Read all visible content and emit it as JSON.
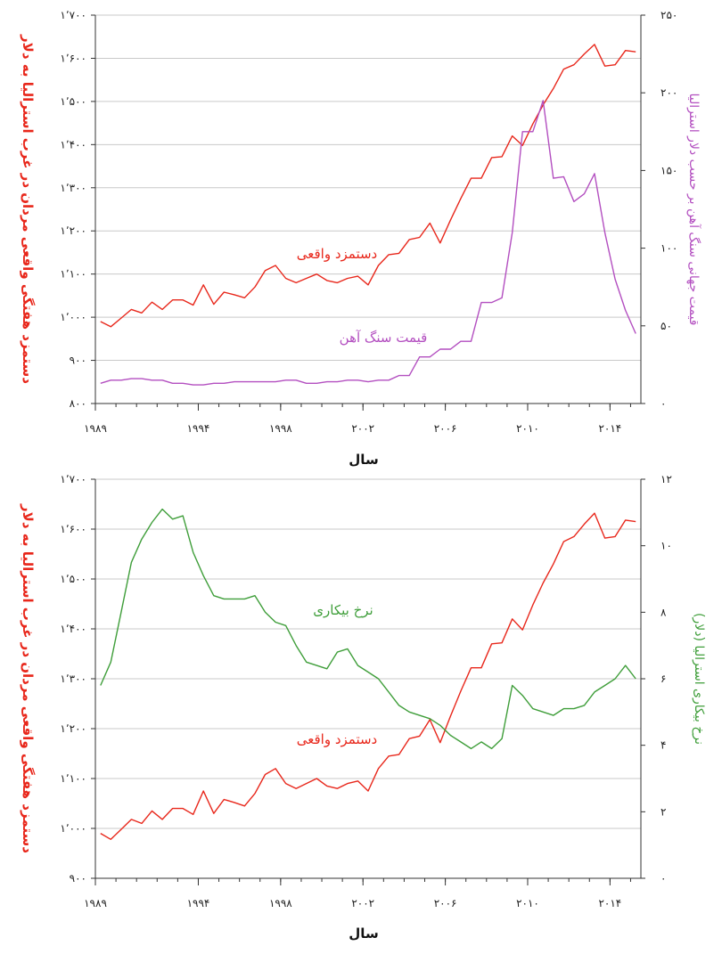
{
  "colors": {
    "wage": "#e8271b",
    "iron": "#b34fc0",
    "unemployment": "#3f9e3a",
    "grid": "#c9c9c9",
    "axis": "#333333"
  },
  "chart_data": [
    {
      "type": "line",
      "xlabel": "سال",
      "ylabel_left": "دستمزد هفتگی واقعی مردان در غرب استرالیا به دلار",
      "ylabel_right": "قیمت جهانی سنگ آهن بر حسب دلار استرالیا",
      "xlim": [
        1989,
        2015.5
      ],
      "ylim_left": [
        800,
        1700
      ],
      "ylim_right": [
        0,
        250
      ],
      "x_ticks": [
        1989,
        1994,
        1998,
        2002,
        2006,
        2010,
        2014
      ],
      "x_tick_labels": [
        "۱۹۸۹",
        "۱۹۹۴",
        "۱۹۹۸",
        "۲۰۰۲",
        "۲۰۰۶",
        "۲۰۱۰",
        "۲۰۱۴"
      ],
      "y_left_ticks": [
        800,
        900,
        1000,
        1100,
        1200,
        1300,
        1400,
        1500,
        1600,
        1700
      ],
      "y_left_tick_labels": [
        "۸۰۰",
        "۹۰۰",
        "۱٬۰۰۰",
        "۱٬۱۰۰",
        "۱٬۲۰۰",
        "۱٬۳۰۰",
        "۱٬۴۰۰",
        "۱٬۵۰۰",
        "۱٬۶۰۰",
        "۱٬۷۰۰"
      ],
      "y_right_ticks": [
        0,
        50,
        100,
        150,
        200,
        250
      ],
      "y_right_tick_labels": [
        "۰",
        "۵۰",
        "۱۰۰",
        "۱۵۰",
        "۲۰۰",
        "۲۵۰"
      ],
      "grid": "horizontal",
      "series": [
        {
          "name": "دستمزد واقعی",
          "axis": "left",
          "color": "#e8271b",
          "x": [
            1989.25,
            1989.75,
            1990.25,
            1990.75,
            1991.25,
            1991.75,
            1992.25,
            1992.75,
            1993.25,
            1993.75,
            1994.25,
            1994.75,
            1995.25,
            1995.75,
            1996.25,
            1996.75,
            1997.25,
            1997.75,
            1998.25,
            1998.75,
            1999.25,
            1999.75,
            2000.25,
            2000.75,
            2001.25,
            2001.75,
            2002.25,
            2002.75,
            2003.25,
            2003.75,
            2004.25,
            2004.75,
            2005.25,
            2005.75,
            2006.25,
            2006.75,
            2007.25,
            2007.75,
            2008.25,
            2008.75,
            2009.25,
            2009.75,
            2010.25,
            2010.75,
            2011.25,
            2011.75,
            2012.25,
            2012.75,
            2013.25,
            2013.75,
            2014.25,
            2014.75,
            2015.25
          ],
          "values": [
            990,
            978,
            998,
            1018,
            1010,
            1035,
            1018,
            1040,
            1040,
            1028,
            1075,
            1030,
            1058,
            1052,
            1045,
            1070,
            1108,
            1120,
            1090,
            1080,
            1090,
            1100,
            1085,
            1080,
            1090,
            1095,
            1075,
            1120,
            1145,
            1148,
            1180,
            1185,
            1218,
            1172,
            1225,
            1275,
            1322,
            1322,
            1370,
            1372,
            1420,
            1398,
            1448,
            1492,
            1530,
            1575,
            1585,
            1610,
            1632,
            1582,
            1585,
            1618,
            1615
          ]
        },
        {
          "name": "قیمت سنگ آهن",
          "axis": "right",
          "color": "#b34fc0",
          "x": [
            1989.25,
            1989.75,
            1990.25,
            1990.75,
            1991.25,
            1991.75,
            1992.25,
            1992.75,
            1993.25,
            1993.75,
            1994.25,
            1994.75,
            1995.25,
            1995.75,
            1996.25,
            1996.75,
            1997.25,
            1997.75,
            1998.25,
            1998.75,
            1999.25,
            1999.75,
            2000.25,
            2000.75,
            2001.25,
            2001.75,
            2002.25,
            2002.75,
            2003.25,
            2003.75,
            2004.25,
            2004.75,
            2005.25,
            2005.75,
            2006.25,
            2006.75,
            2007.25,
            2007.75,
            2008.25,
            2008.75,
            2009.25,
            2009.75,
            2010.25,
            2010.75,
            2011.25,
            2011.75,
            2012.25,
            2012.75,
            2013.25,
            2013.75,
            2014.25,
            2014.75,
            2015.25
          ],
          "values": [
            13,
            15,
            15,
            16,
            16,
            15,
            15,
            13,
            13,
            12,
            12,
            13,
            13,
            14,
            14,
            14,
            14,
            14,
            15,
            15,
            13,
            13,
            14,
            14,
            15,
            15,
            14,
            15,
            15,
            18,
            18,
            30,
            30,
            35,
            35,
            40,
            40,
            65,
            65,
            68,
            110,
            175,
            175,
            195,
            145,
            146,
            130,
            135,
            148,
            110,
            80,
            60,
            45
          ]
        }
      ],
      "annotations": [
        {
          "text": "دستمزد واقعی",
          "color": "#e8271b"
        },
        {
          "text": "قیمت سنگ آهن",
          "color": "#b34fc0"
        }
      ]
    },
    {
      "type": "line",
      "xlabel": "سال",
      "ylabel_left": "دستمزد هفتگی واقعی مردان در غرب استرالیا به دلار",
      "ylabel_right": "نرخ بیکاری استرالیا (دلار)",
      "xlim": [
        1989,
        2015.5
      ],
      "ylim_left": [
        900,
        1700
      ],
      "ylim_right": [
        0,
        12
      ],
      "x_ticks": [
        1989,
        1994,
        1998,
        2002,
        2006,
        2010,
        2014
      ],
      "x_tick_labels": [
        "۱۹۸۹",
        "۱۹۹۴",
        "۱۹۹۸",
        "۲۰۰۲",
        "۲۰۰۶",
        "۲۰۱۰",
        "۲۰۱۴"
      ],
      "y_left_ticks": [
        900,
        1000,
        1100,
        1200,
        1300,
        1400,
        1500,
        1600,
        1700
      ],
      "y_left_tick_labels": [
        "۹۰۰",
        "۱٬۰۰۰",
        "۱٬۱۰۰",
        "۱٬۲۰۰",
        "۱٬۳۰۰",
        "۱٬۴۰۰",
        "۱٬۵۰۰",
        "۱٬۶۰۰",
        "۱٬۷۰۰"
      ],
      "y_right_ticks": [
        0,
        2,
        4,
        6,
        8,
        10,
        12
      ],
      "y_right_tick_labels": [
        "۰",
        "۲",
        "۴",
        "۶",
        "۸",
        "۱۰",
        "۱۲"
      ],
      "grid": "horizontal",
      "series": [
        {
          "name": "دستمزد واقعی",
          "axis": "left",
          "color": "#e8271b",
          "x": [
            1989.25,
            1989.75,
            1990.25,
            1990.75,
            1991.25,
            1991.75,
            1992.25,
            1992.75,
            1993.25,
            1993.75,
            1994.25,
            1994.75,
            1995.25,
            1995.75,
            1996.25,
            1996.75,
            1997.25,
            1997.75,
            1998.25,
            1998.75,
            1999.25,
            1999.75,
            2000.25,
            2000.75,
            2001.25,
            2001.75,
            2002.25,
            2002.75,
            2003.25,
            2003.75,
            2004.25,
            2004.75,
            2005.25,
            2005.75,
            2006.25,
            2006.75,
            2007.25,
            2007.75,
            2008.25,
            2008.75,
            2009.25,
            2009.75,
            2010.25,
            2010.75,
            2011.25,
            2011.75,
            2012.25,
            2012.75,
            2013.25,
            2013.75,
            2014.25,
            2014.75,
            2015.25
          ],
          "values": [
            990,
            978,
            998,
            1018,
            1010,
            1035,
            1018,
            1040,
            1040,
            1028,
            1075,
            1030,
            1058,
            1052,
            1045,
            1070,
            1108,
            1120,
            1090,
            1080,
            1090,
            1100,
            1085,
            1080,
            1090,
            1095,
            1075,
            1120,
            1145,
            1148,
            1180,
            1185,
            1218,
            1172,
            1225,
            1275,
            1322,
            1322,
            1370,
            1372,
            1420,
            1398,
            1448,
            1492,
            1530,
            1575,
            1585,
            1610,
            1632,
            1582,
            1585,
            1618,
            1615
          ]
        },
        {
          "name": "نرخ بیکاری",
          "axis": "right",
          "color": "#3f9e3a",
          "x": [
            1989.25,
            1989.75,
            1990.25,
            1990.75,
            1991.25,
            1991.75,
            1992.25,
            1992.75,
            1993.25,
            1993.75,
            1994.25,
            1994.75,
            1995.25,
            1995.75,
            1996.25,
            1996.75,
            1997.25,
            1997.75,
            1998.25,
            1998.75,
            1999.25,
            1999.75,
            2000.25,
            2000.75,
            2001.25,
            2001.75,
            2002.25,
            2002.75,
            2003.25,
            2003.75,
            2004.25,
            2004.75,
            2005.25,
            2005.75,
            2006.25,
            2006.75,
            2007.25,
            2007.75,
            2008.25,
            2008.75,
            2009.25,
            2009.75,
            2010.25,
            2010.75,
            2011.25,
            2011.75,
            2012.25,
            2012.75,
            2013.25,
            2013.75,
            2014.25,
            2014.75,
            2015.25
          ],
          "values": [
            5.8,
            6.5,
            8.0,
            9.5,
            10.2,
            10.7,
            11.1,
            10.8,
            10.9,
            9.8,
            9.1,
            8.5,
            8.4,
            8.4,
            8.4,
            8.5,
            8.0,
            7.7,
            7.6,
            7.0,
            6.5,
            6.4,
            6.3,
            6.8,
            6.9,
            6.4,
            6.2,
            6.0,
            5.6,
            5.2,
            5.0,
            4.9,
            4.8,
            4.6,
            4.3,
            4.1,
            3.9,
            4.1,
            3.9,
            4.2,
            5.8,
            5.5,
            5.1,
            5.0,
            4.9,
            5.1,
            5.1,
            5.2,
            5.6,
            5.8,
            6.0,
            6.4,
            6.0
          ]
        }
      ],
      "annotations": [
        {
          "text": "نرخ بیکاری",
          "color": "#3f9e3a"
        },
        {
          "text": "دستمزد واقعی",
          "color": "#e8271b"
        }
      ]
    }
  ]
}
